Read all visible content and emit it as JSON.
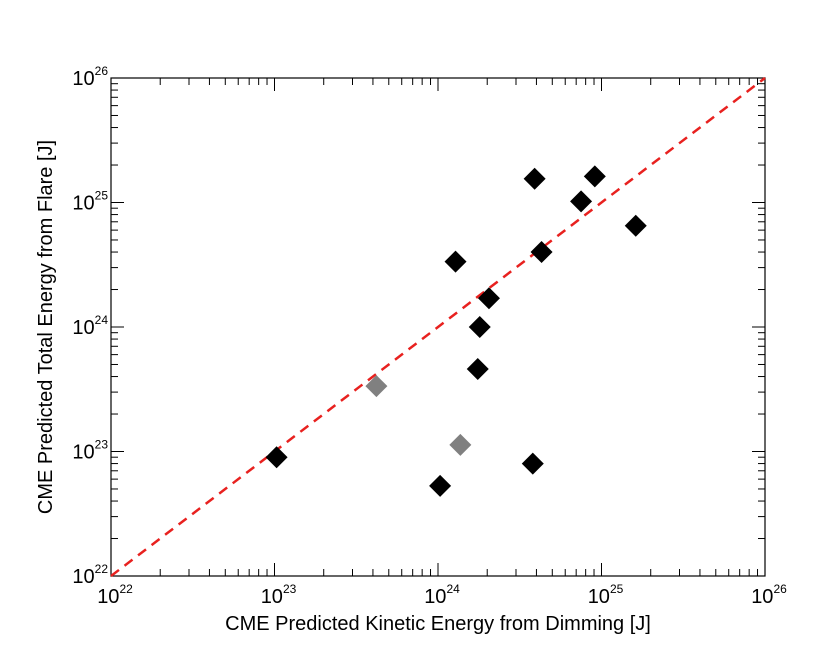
{
  "chart_data": {
    "type": "scatter",
    "title": "",
    "xlabel": "CME Predicted Kinetic Energy from Dimming [J]",
    "ylabel": "CME Predicted Total Energy from Flare [J]",
    "xscale": "log",
    "yscale": "log",
    "xlim": [
      1e+22,
      1e+26
    ],
    "ylim": [
      1e+22,
      1e+26
    ],
    "x_tick_labels": [
      {
        "base": "10",
        "exp": "22",
        "value": 1e+22
      },
      {
        "base": "10",
        "exp": "23",
        "value": 1e+23
      },
      {
        "base": "10",
        "exp": "24",
        "value": 1e+24
      },
      {
        "base": "10",
        "exp": "25",
        "value": 1e+25
      },
      {
        "base": "10",
        "exp": "26",
        "value": 1e+26
      }
    ],
    "y_tick_labels": [
      {
        "base": "10",
        "exp": "22",
        "value": 1e+22
      },
      {
        "base": "10",
        "exp": "23",
        "value": 1e+23
      },
      {
        "base": "10",
        "exp": "24",
        "value": 1e+24
      },
      {
        "base": "10",
        "exp": "25",
        "value": 1e+25
      },
      {
        "base": "10",
        "exp": "26",
        "value": 1e+26
      }
    ],
    "grid": false,
    "series": [
      {
        "name": "black points",
        "color": "#000000",
        "marker": "diamond",
        "points": [
          {
            "x": 1.03e+23,
            "y": 9e+22
          },
          {
            "x": 1.03e+24,
            "y": 5.3e+22
          },
          {
            "x": 1.28e+24,
            "y": 3.35e+24
          },
          {
            "x": 1.75e+24,
            "y": 4.6e+23
          },
          {
            "x": 1.8e+24,
            "y": 1e+24
          },
          {
            "x": 2.05e+24,
            "y": 1.7e+24
          },
          {
            "x": 3.8e+24,
            "y": 8e+22
          },
          {
            "x": 3.9e+24,
            "y": 1.55e+25
          },
          {
            "x": 4.3e+24,
            "y": 4e+24
          },
          {
            "x": 7.5e+24,
            "y": 1.02e+25
          },
          {
            "x": 9.1e+24,
            "y": 1.62e+25
          },
          {
            "x": 1.62e+25,
            "y": 6.5e+24
          }
        ]
      },
      {
        "name": "gray points",
        "color": "#808080",
        "marker": "diamond",
        "points": [
          {
            "x": 4.2e+23,
            "y": 3.35e+23
          },
          {
            "x": 1.37e+24,
            "y": 1.13e+23
          }
        ]
      }
    ],
    "reference_line": {
      "name": "one-to-one line",
      "color": "#e8211f",
      "style": "dashed",
      "from": [
        1e+22,
        1e+22
      ],
      "to": [
        1e+26,
        1e+26
      ]
    }
  }
}
